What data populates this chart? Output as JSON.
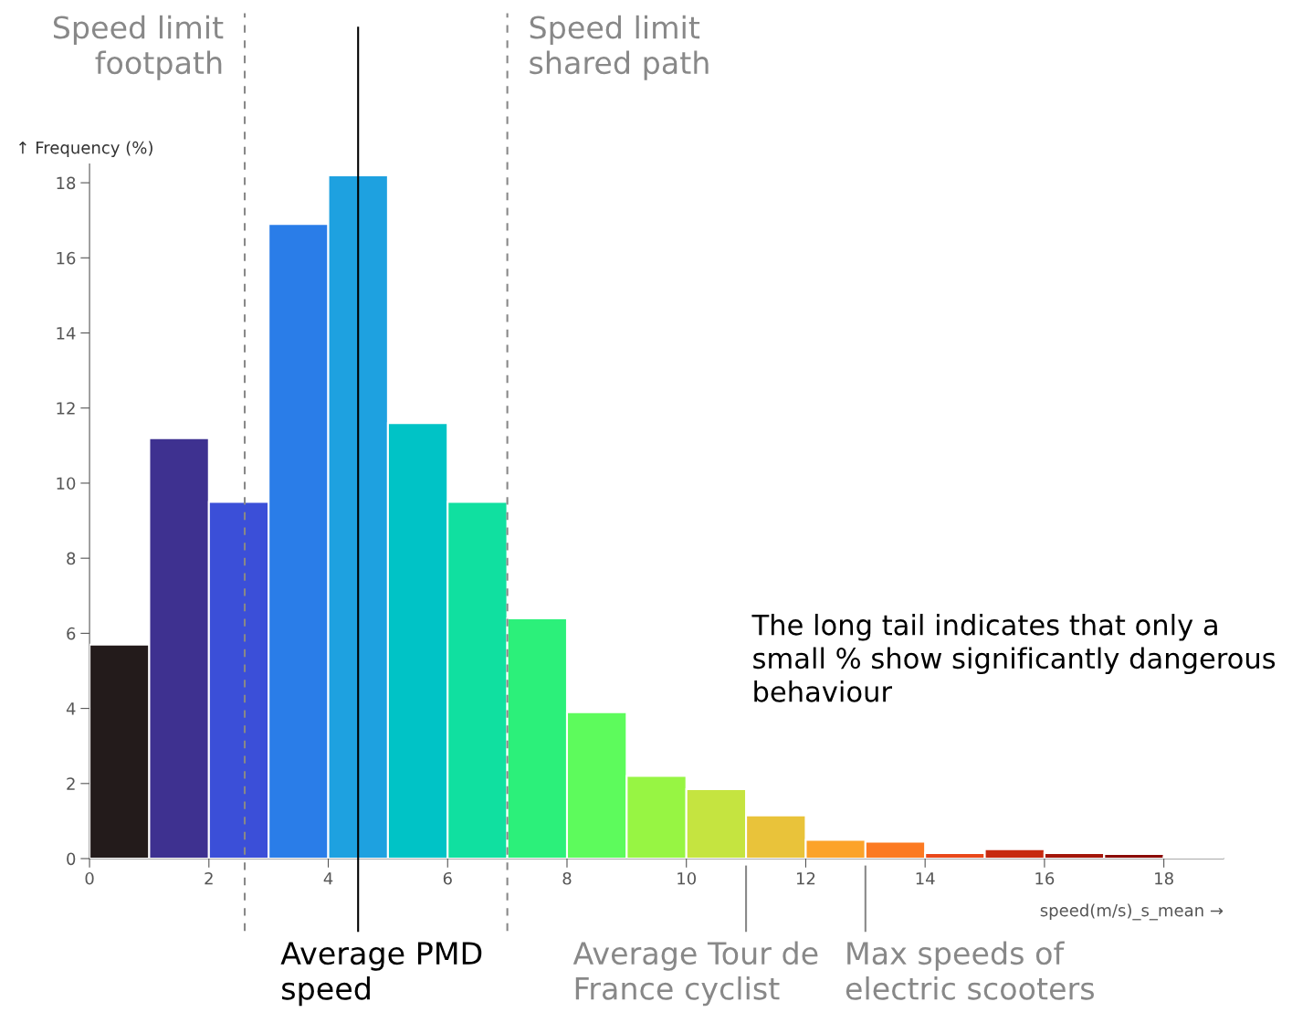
{
  "chart_data": {
    "type": "histogram",
    "xlabel": "speed(m/s)_s_mean →",
    "ylabel": "↑ Frequency (%)",
    "bins": [
      0,
      1,
      2,
      3,
      4,
      5,
      6,
      7,
      8,
      9,
      10,
      11,
      12,
      13,
      14,
      15,
      16,
      17,
      18,
      19
    ],
    "values": [
      5.7,
      11.2,
      9.5,
      16.9,
      18.2,
      11.6,
      9.5,
      6.4,
      3.9,
      2.2,
      1.85,
      1.15,
      0.5,
      0.45,
      0.15,
      0.25,
      0.15,
      0.12,
      0.05
    ],
    "colors": [
      "#231b1b",
      "#3e3190",
      "#3b4fd8",
      "#2a7de8",
      "#1ea1e0",
      "#00c3c6",
      "#10e0a0",
      "#2cf07a",
      "#5dfb5c",
      "#97f543",
      "#c5e440",
      "#e9c33a",
      "#fca32a",
      "#fc7a22",
      "#e9481a",
      "#c72a10",
      "#a3150a",
      "#8a0a06",
      "#7a0403"
    ],
    "xlim": [
      0,
      19
    ],
    "ylim": [
      0,
      18.5
    ],
    "xticks": [
      0,
      2,
      4,
      6,
      8,
      10,
      12,
      14,
      16,
      18
    ],
    "yticks": [
      0,
      2,
      4,
      6,
      8,
      10,
      12,
      14,
      16,
      18
    ],
    "grid": false,
    "legend": false,
    "ref_lines": [
      {
        "axis": "x",
        "value": 2.6,
        "label": "Speed limit\nfootpath",
        "color": "#888888",
        "line_style": "dashed"
      },
      {
        "axis": "x",
        "value": 7.0,
        "label": "Speed limit\nshared path",
        "color": "#888888",
        "line_style": "dashed"
      },
      {
        "axis": "x",
        "value": 4.5,
        "label": "Average PMD\nspeed",
        "color": "#000000",
        "line_style": "solid"
      },
      {
        "axis": "x",
        "value": 11.0,
        "label": "Average Tour de\nFrance cyclist",
        "color": "#888888",
        "line_style": "solid"
      },
      {
        "axis": "x",
        "value": 13.0,
        "label": "Max speeds of\nelectric scooters",
        "color": "#888888",
        "line_style": "solid"
      }
    ],
    "annotations": [
      "The long tail indicates that only a\nsmall % show significantly dangerous\nbehaviour"
    ]
  }
}
